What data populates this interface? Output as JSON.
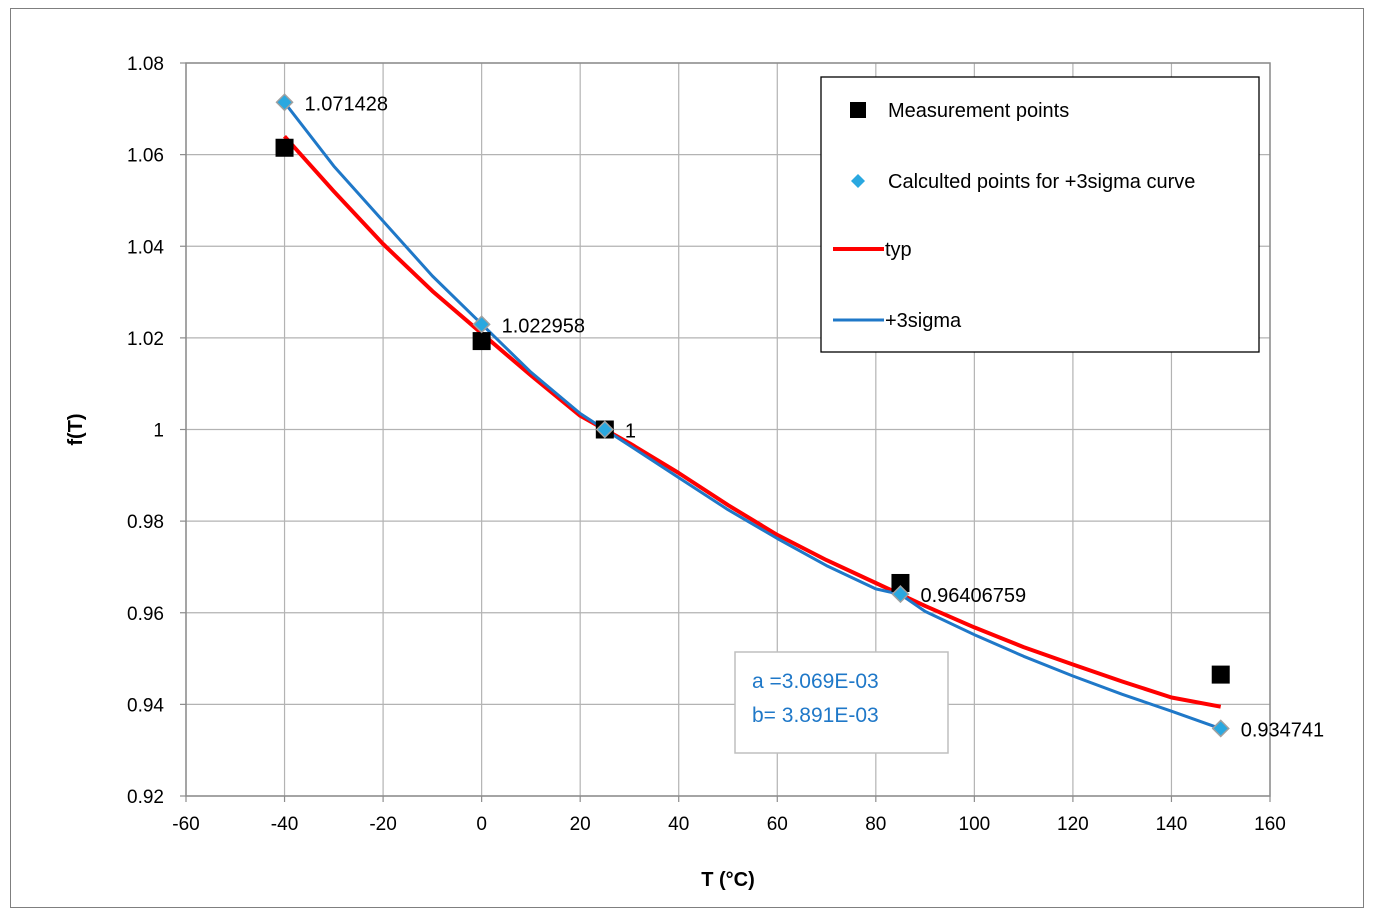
{
  "chart_data": {
    "type": "scatter",
    "title": "",
    "xlabel": "T (°C)",
    "ylabel": "f(T)",
    "xlim": [
      -60,
      160
    ],
    "ylim": [
      0.92,
      1.08
    ],
    "x_ticks": [
      "-60",
      "-40",
      "-20",
      "0",
      "20",
      "40",
      "60",
      "80",
      "100",
      "120",
      "140",
      "160"
    ],
    "y_ticks": [
      "0.92",
      "0.94",
      "0.96",
      "0.98",
      "1",
      "1.02",
      "1.04",
      "1.06",
      "1.08"
    ],
    "grid": true,
    "legend_position": "top-right",
    "series": [
      {
        "name": "Measurement points",
        "kind": "marker-square",
        "color": "#000000",
        "x": [
          -40,
          0,
          25,
          85,
          150
        ],
        "y": [
          1.0615,
          1.0193,
          1.0,
          0.9665,
          0.9465
        ]
      },
      {
        "name": "Calculted points for +3sigma curve",
        "kind": "marker-diamond",
        "color": "#2aa8e0",
        "x": [
          -40,
          0,
          25,
          85,
          150
        ],
        "y": [
          1.071428,
          1.022958,
          1.0,
          0.96406759,
          0.934741
        ],
        "labels": [
          "1.071428",
          "1.022958",
          "1",
          "0.96406759",
          "0.934741"
        ]
      },
      {
        "name": "typ",
        "kind": "line",
        "color": "#ff0000",
        "x": [
          -40,
          -30,
          -20,
          -10,
          0,
          10,
          20,
          25,
          30,
          40,
          50,
          60,
          70,
          80,
          85,
          90,
          100,
          110,
          120,
          130,
          140,
          150
        ],
        "y": [
          1.064,
          1.052,
          1.0405,
          1.0302,
          1.021,
          1.0118,
          1.003,
          1.0,
          0.997,
          0.9905,
          0.9835,
          0.977,
          0.9715,
          0.9665,
          0.964,
          0.9615,
          0.9568,
          0.9525,
          0.9487,
          0.945,
          0.9415,
          0.9395
        ]
      },
      {
        "name": "+3sigma",
        "kind": "line",
        "color": "#1f78c8",
        "x": [
          -40,
          -30,
          -20,
          -10,
          0,
          10,
          20,
          25,
          30,
          40,
          50,
          60,
          70,
          80,
          85,
          90,
          100,
          110,
          120,
          130,
          140,
          150
        ],
        "y": [
          1.0714,
          1.0575,
          1.0455,
          1.0335,
          1.023,
          1.0125,
          1.0035,
          1.0,
          0.9965,
          0.9895,
          0.9825,
          0.9762,
          0.9703,
          0.9652,
          0.964,
          0.9603,
          0.9552,
          0.9505,
          0.9462,
          0.9422,
          0.9385,
          0.9347
        ]
      }
    ],
    "annotation": {
      "lines": [
        "a =3.069E-03",
        "b= 3.891E-03"
      ],
      "color": "#1f78c8"
    }
  }
}
